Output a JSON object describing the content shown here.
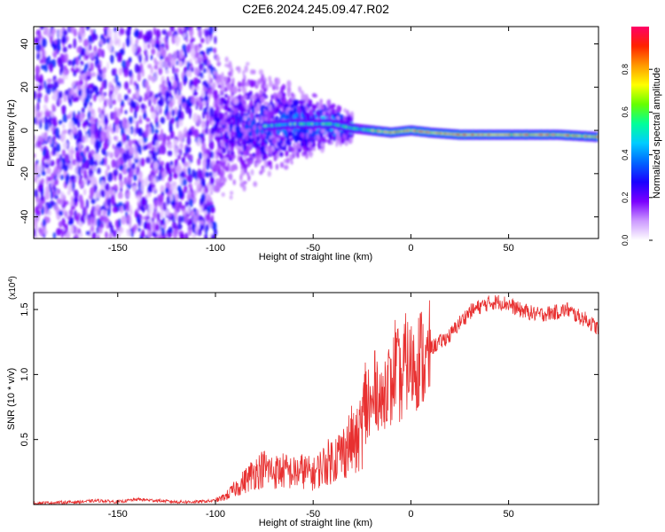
{
  "title": "C2E6.2024.245.09.47.R02",
  "chart_data": [
    {
      "type": "heatmap",
      "xlabel": "Height of straight line (km)",
      "ylabel": "Frequency (Hz)",
      "xlim": [
        -193,
        96
      ],
      "ylim": [
        -50,
        48
      ],
      "xticks": [
        -150,
        -100,
        -50,
        0,
        50
      ],
      "yticks": [
        -40,
        -20,
        0,
        20,
        40
      ],
      "colorbar": {
        "label": "Normalized spectral amplitude",
        "range": [
          0,
          1
        ],
        "ticks": [
          0.0,
          0.2,
          0.4,
          0.6,
          0.8
        ],
        "tick_labels": [
          "0.0",
          "0.2",
          "0.4",
          "0.6",
          "0.8"
        ],
        "colormap": [
          "#ffffff",
          "#cc99ff",
          "#7a00ff",
          "#1a00ff",
          "#0066ff",
          "#00ccff",
          "#00ff99",
          "#66ff00",
          "#ffff00",
          "#ff9900",
          "#ff2200",
          "#ff0066"
        ]
      },
      "ridge": {
        "description_free": true,
        "points": [
          [
            -75,
            2
          ],
          [
            -60,
            3
          ],
          [
            -50,
            3
          ],
          [
            -40,
            3
          ],
          [
            -30,
            1
          ],
          [
            -20,
            0
          ],
          [
            -10,
            -1
          ],
          [
            0,
            0
          ],
          [
            10,
            -1
          ],
          [
            25,
            -2
          ],
          [
            50,
            -2
          ],
          [
            75,
            -2
          ],
          [
            95,
            -3
          ]
        ]
      }
    },
    {
      "type": "line",
      "xlabel": "Height of straight line (km)",
      "ylabel": "SNR (10 * v/v)",
      "yscale_label": "(x10",
      "yscale_exp": "4",
      "yscale_close": ")",
      "xlim": [
        -193,
        96
      ],
      "ylim": [
        0,
        1.63
      ],
      "xticks": [
        -150,
        -100,
        -50,
        0,
        50
      ],
      "yticks": [
        0.5,
        1.0,
        1.5
      ],
      "ytick_labels": [
        "0.5",
        "1.0",
        "1.5"
      ],
      "color": "#e83030",
      "series": [
        {
          "x": [
            -193,
            -170,
            -160,
            -150,
            -140,
            -130,
            -120,
            -110,
            -100,
            -95,
            -90,
            -85,
            -80,
            -75,
            -70,
            -65,
            -60,
            -55,
            -50,
            -45,
            -40,
            -35,
            -30,
            -28,
            -25,
            -23,
            -20,
            -18,
            -15,
            -12,
            -10,
            -8,
            -5,
            -3,
            0,
            3,
            5,
            8,
            10,
            15,
            20,
            25,
            30,
            35,
            40,
            45,
            50,
            55,
            60,
            65,
            70,
            75,
            80,
            85,
            90,
            96
          ],
          "y": [
            0.01,
            0.02,
            0.03,
            0.02,
            0.04,
            0.03,
            0.02,
            0.02,
            0.03,
            0.06,
            0.12,
            0.18,
            0.25,
            0.28,
            0.25,
            0.26,
            0.24,
            0.26,
            0.23,
            0.3,
            0.35,
            0.4,
            0.5,
            0.45,
            0.6,
            0.8,
            0.7,
            0.95,
            0.75,
            1.0,
            0.85,
            1.1,
            0.9,
            1.1,
            1.05,
            1.1,
            1.15,
            1.05,
            1.2,
            1.25,
            1.3,
            1.4,
            1.48,
            1.52,
            1.55,
            1.56,
            1.54,
            1.5,
            1.48,
            1.46,
            1.47,
            1.48,
            1.5,
            1.45,
            1.42,
            1.35
          ]
        }
      ]
    }
  ]
}
